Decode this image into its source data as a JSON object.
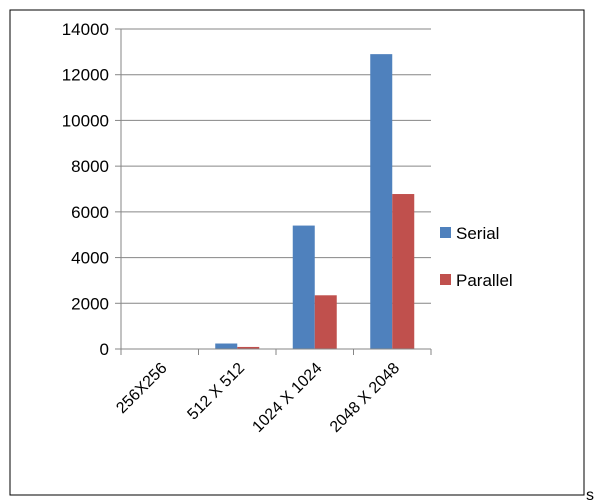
{
  "chart_data": {
    "type": "bar",
    "categories": [
      "256X256",
      "512 X 512",
      "1024 X 1024",
      "2048 X 2048"
    ],
    "series": [
      {
        "name": "Serial",
        "values": [
          0,
          240,
          5400,
          12900
        ],
        "color": "#4f81bd"
      },
      {
        "name": "Parallel",
        "values": [
          0,
          90,
          2350,
          6780
        ],
        "color": "#c0504d"
      }
    ],
    "ylim": [
      0,
      14000
    ],
    "yticks": [
      0,
      2000,
      4000,
      6000,
      8000,
      10000,
      12000,
      14000
    ],
    "grid": true,
    "legend_position": "right"
  },
  "stray_text": "s"
}
